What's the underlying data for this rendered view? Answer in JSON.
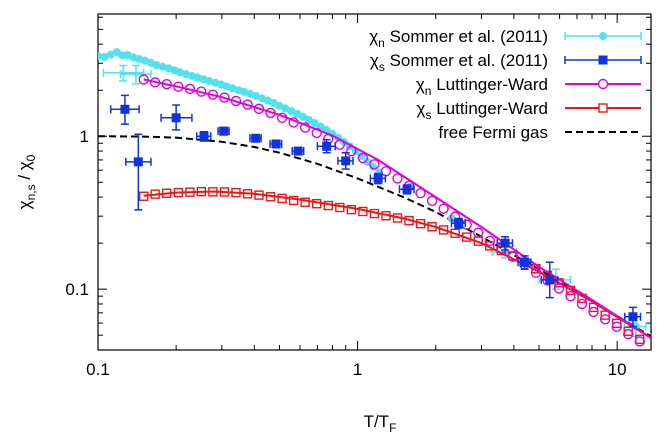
{
  "chart_data": {
    "type": "scatter",
    "title": "",
    "xlabel": "T/T",
    "xlabel_sub": "F",
    "ylabel_parts": [
      "χ",
      "n,s",
      " / χ",
      "0"
    ],
    "xscale": "log",
    "yscale": "log",
    "xlim": [
      0.1,
      13.5
    ],
    "ylim": [
      0.04,
      6.3
    ],
    "xticks": [
      {
        "value": 0.1,
        "label": "0.1"
      },
      {
        "value": 1,
        "label": "1"
      },
      {
        "value": 10,
        "label": "10"
      }
    ],
    "yticks": [
      {
        "value": 0.1,
        "label": "0.1"
      },
      {
        "value": 1,
        "label": "1"
      }
    ],
    "grid": false,
    "legend_position": "top-right",
    "colors": {
      "chi_n_exp": "#4fe3ee",
      "chi_s_exp": "#1133dd",
      "chi_n_lw": "#e000e0",
      "chi_s_lw": "#e81818",
      "free": "#000000"
    },
    "series": [
      {
        "key": "chi_n_exp",
        "name": "χ",
        "name_sub": "n",
        "name_rest": " Sommer et al. (2011)",
        "style": "errorbar-filled-circle",
        "points": [
          [
            0.1,
            3.35
          ],
          [
            0.106,
            3.3
          ],
          [
            0.112,
            3.42
          ],
          [
            0.118,
            3.55
          ],
          [
            0.124,
            3.38
          ],
          [
            0.13,
            3.4
          ],
          [
            0.137,
            3.28
          ],
          [
            0.144,
            3.2
          ],
          [
            0.152,
            3.12
          ],
          [
            0.16,
            3.02
          ],
          [
            0.168,
            2.92
          ],
          [
            0.177,
            2.85
          ],
          [
            0.187,
            2.78
          ],
          [
            0.197,
            2.7
          ],
          [
            0.207,
            2.62
          ],
          [
            0.218,
            2.55
          ],
          [
            0.23,
            2.48
          ],
          [
            0.242,
            2.42
          ],
          [
            0.255,
            2.36
          ],
          [
            0.268,
            2.3
          ],
          [
            0.283,
            2.24
          ],
          [
            0.298,
            2.18
          ],
          [
            0.313,
            2.12
          ],
          [
            0.33,
            2.06
          ],
          [
            0.348,
            2.0
          ],
          [
            0.366,
            1.95
          ],
          [
            0.386,
            1.89
          ],
          [
            0.406,
            1.83
          ],
          [
            0.428,
            1.77
          ],
          [
            0.451,
            1.71
          ],
          [
            0.475,
            1.65
          ],
          [
            0.5,
            1.58
          ],
          [
            0.527,
            1.52
          ],
          [
            0.555,
            1.46
          ],
          [
            0.585,
            1.4
          ],
          [
            0.616,
            1.34
          ],
          [
            0.649,
            1.28
          ],
          [
            0.683,
            1.22
          ],
          [
            0.72,
            1.16
          ],
          [
            0.758,
            1.1
          ],
          [
            0.798,
            1.04
          ],
          [
            0.841,
            0.98
          ],
          [
            0.886,
            0.92
          ],
          [
            0.933,
            0.86
          ],
          [
            0.983,
            0.8
          ],
          [
            1.035,
            0.74
          ],
          [
            1.09,
            0.68
          ],
          [
            1.148,
            0.63
          ],
          [
            1.21,
            0.58
          ],
          [
            1.6,
            0.47
          ],
          [
            2.3,
            0.29
          ],
          [
            3.7,
            0.175
          ],
          [
            5.8,
            0.115
          ],
          [
            11.8,
            0.057
          ]
        ],
        "errors": [
          {
            "x": 0.125,
            "y": 2.6,
            "xerr": [
              0.105,
              0.15
            ],
            "yerr": [
              2.3,
              2.9
            ]
          },
          {
            "x": 0.14,
            "y": 2.55,
            "xerr": [
              0.122,
              0.16
            ],
            "yerr": [
              2.2,
              2.9
            ]
          },
          {
            "x": 3.7,
            "y": 0.175,
            "xerr": [
              3.3,
              4.1
            ],
            "yerr": [
              0.16,
              0.19
            ]
          },
          {
            "x": 5.8,
            "y": 0.115,
            "xerr": [
              5.0,
              6.6
            ],
            "yerr": [
              0.1,
              0.135
            ]
          },
          {
            "x": 11.8,
            "y": 0.057,
            "xerr": [
              10.7,
              12.9
            ],
            "yerr": [
              0.049,
              0.066
            ]
          }
        ]
      },
      {
        "key": "chi_s_exp",
        "name": "χ",
        "name_sub": "s",
        "name_rest": " Sommer et al. (2011)",
        "style": "errorbar-filled-square",
        "points": [
          {
            "x": 0.127,
            "y": 1.5,
            "xerr": [
              0.112,
              0.144
            ],
            "yerr": [
              1.2,
              1.85
            ]
          },
          {
            "x": 0.143,
            "y": 0.68,
            "xerr": [
              0.128,
              0.16
            ],
            "yerr": [
              0.33,
              1.03
            ]
          },
          {
            "x": 0.2,
            "y": 1.32,
            "xerr": [
              0.175,
              0.23
            ],
            "yerr": [
              1.1,
              1.6
            ]
          },
          {
            "x": 0.256,
            "y": 1.0,
            "xerr": [
              0.24,
              0.272
            ],
            "yerr": [
              0.93,
              1.07
            ]
          },
          {
            "x": 0.305,
            "y": 1.08,
            "xerr": [
              0.29,
              0.32
            ],
            "yerr": [
              1.02,
              1.14
            ]
          },
          {
            "x": 0.405,
            "y": 0.97,
            "xerr": [
              0.385,
              0.425
            ],
            "yerr": [
              0.93,
              1.01
            ]
          },
          {
            "x": 0.485,
            "y": 0.89,
            "xerr": [
              0.46,
              0.51
            ],
            "yerr": [
              0.86,
              0.92
            ]
          },
          {
            "x": 0.59,
            "y": 0.8,
            "xerr": [
              0.56,
              0.62
            ],
            "yerr": [
              0.77,
              0.83
            ]
          },
          {
            "x": 0.76,
            "y": 0.86,
            "xerr": [
              0.7,
              0.82
            ],
            "yerr": [
              0.78,
              0.95
            ]
          },
          {
            "x": 0.9,
            "y": 0.69,
            "xerr": [
              0.84,
              0.96
            ],
            "yerr": [
              0.61,
              0.78
            ]
          },
          {
            "x": 1.2,
            "y": 0.53,
            "xerr": [
              1.12,
              1.28
            ],
            "yerr": [
              0.49,
              0.57
            ]
          },
          {
            "x": 1.55,
            "y": 0.45,
            "xerr": [
              1.45,
              1.65
            ],
            "yerr": [
              0.42,
              0.48
            ]
          },
          {
            "x": 2.45,
            "y": 0.27,
            "xerr": [
              2.3,
              2.6
            ],
            "yerr": [
              0.25,
              0.29
            ]
          },
          {
            "x": 3.7,
            "y": 0.2,
            "xerr": [
              3.45,
              3.95
            ],
            "yerr": [
              0.18,
              0.22
            ]
          },
          {
            "x": 4.4,
            "y": 0.15,
            "xerr": [
              4.15,
              4.65
            ],
            "yerr": [
              0.135,
              0.165
            ]
          },
          {
            "x": 5.5,
            "y": 0.115,
            "xerr": [
              5.1,
              5.9
            ],
            "yerr": [
              0.088,
              0.15
            ]
          },
          {
            "x": 11.5,
            "y": 0.066,
            "xerr": [
              10.7,
              12.3
            ],
            "yerr": [
              0.057,
              0.076
            ]
          }
        ]
      },
      {
        "key": "chi_n_lw",
        "name": "χ",
        "name_sub": "n",
        "name_rest": " Luttinger-Ward",
        "style": "line-open-circle",
        "line": [
          [
            0.15,
            2.35
          ],
          [
            0.2,
            2.12
          ],
          [
            0.3,
            1.8
          ],
          [
            0.5,
            1.38
          ],
          [
            0.8,
            1.01
          ],
          [
            1.2,
            0.7
          ],
          [
            2.0,
            0.4
          ],
          [
            3.0,
            0.255
          ],
          [
            5.0,
            0.14
          ],
          [
            8.0,
            0.085
          ],
          [
            13.5,
            0.048
          ]
        ],
        "markers": [
          [
            0.15,
            2.35
          ],
          [
            0.166,
            2.25
          ],
          [
            0.184,
            2.19
          ],
          [
            0.204,
            2.11
          ],
          [
            0.226,
            2.04
          ],
          [
            0.25,
            1.96
          ],
          [
            0.277,
            1.87
          ],
          [
            0.307,
            1.79
          ],
          [
            0.34,
            1.7
          ],
          [
            0.377,
            1.61
          ],
          [
            0.417,
            1.51
          ],
          [
            0.462,
            1.42
          ],
          [
            0.512,
            1.32
          ],
          [
            0.567,
            1.23
          ],
          [
            0.628,
            1.14
          ],
          [
            0.696,
            1.05
          ],
          [
            0.771,
            0.96
          ],
          [
            0.854,
            0.88
          ],
          [
            0.946,
            0.8
          ],
          [
            1.048,
            0.72
          ],
          [
            1.161,
            0.655
          ],
          [
            1.286,
            0.59
          ],
          [
            1.425,
            0.53
          ],
          [
            1.578,
            0.474
          ],
          [
            1.748,
            0.424
          ],
          [
            1.936,
            0.378
          ],
          [
            2.145,
            0.336
          ],
          [
            2.376,
            0.298
          ],
          [
            2.632,
            0.264
          ],
          [
            2.916,
            0.234
          ],
          [
            3.23,
            0.207
          ],
          [
            3.578,
            0.184
          ],
          [
            3.964,
            0.163
          ],
          [
            4.39,
            0.145
          ],
          [
            4.865,
            0.128
          ],
          [
            5.39,
            0.114
          ],
          [
            5.97,
            0.101
          ],
          [
            6.61,
            0.09
          ],
          [
            7.32,
            0.08
          ],
          [
            8.11,
            0.071
          ],
          [
            8.99,
            0.0635
          ],
          [
            9.96,
            0.0568
          ],
          [
            11.03,
            0.0508
          ],
          [
            12.22,
            0.0455
          ]
        ]
      },
      {
        "key": "chi_s_lw",
        "name": "χ",
        "name_sub": "s",
        "name_rest": " Luttinger-Ward",
        "style": "line-open-square",
        "line": [
          [
            0.15,
            0.408
          ],
          [
            0.2,
            0.428
          ],
          [
            0.28,
            0.435
          ],
          [
            0.4,
            0.42
          ],
          [
            0.6,
            0.385
          ],
          [
            1.0,
            0.335
          ],
          [
            1.5,
            0.29
          ],
          [
            2.0,
            0.255
          ],
          [
            3.0,
            0.2
          ],
          [
            5.0,
            0.13
          ],
          [
            8.0,
            0.083
          ],
          [
            13.5,
            0.048
          ]
        ],
        "markers": [
          [
            0.15,
            0.405
          ],
          [
            0.166,
            0.418
          ],
          [
            0.184,
            0.424
          ],
          [
            0.204,
            0.428
          ],
          [
            0.226,
            0.431
          ],
          [
            0.25,
            0.434
          ],
          [
            0.277,
            0.433
          ],
          [
            0.307,
            0.432
          ],
          [
            0.34,
            0.428
          ],
          [
            0.377,
            0.42
          ],
          [
            0.417,
            0.412
          ],
          [
            0.462,
            0.402
          ],
          [
            0.512,
            0.392
          ],
          [
            0.567,
            0.38
          ],
          [
            0.628,
            0.37
          ],
          [
            0.696,
            0.362
          ],
          [
            0.771,
            0.352
          ],
          [
            0.854,
            0.342
          ],
          [
            0.946,
            0.331
          ],
          [
            1.048,
            0.322
          ],
          [
            1.161,
            0.312
          ],
          [
            1.286,
            0.302
          ],
          [
            1.425,
            0.292
          ],
          [
            1.578,
            0.281
          ],
          [
            1.748,
            0.268
          ],
          [
            1.936,
            0.256
          ],
          [
            2.145,
            0.244
          ],
          [
            2.376,
            0.232
          ],
          [
            2.632,
            0.219
          ],
          [
            2.916,
            0.206
          ],
          [
            3.23,
            0.192
          ],
          [
            3.578,
            0.179
          ],
          [
            3.964,
            0.165
          ],
          [
            4.39,
            0.15
          ],
          [
            4.865,
            0.136
          ],
          [
            5.39,
            0.123
          ],
          [
            5.97,
            0.11
          ],
          [
            6.61,
            0.098
          ],
          [
            7.32,
            0.087
          ],
          [
            8.11,
            0.076
          ],
          [
            8.99,
            0.0676
          ],
          [
            9.96,
            0.0598
          ],
          [
            11.03,
            0.053
          ],
          [
            12.22,
            0.047
          ]
        ]
      },
      {
        "key": "free",
        "name": "free Fermi gas",
        "style": "dashed-line",
        "line": [
          [
            0.1,
            1.0
          ],
          [
            0.15,
            0.995
          ],
          [
            0.2,
            0.98
          ],
          [
            0.3,
            0.92
          ],
          [
            0.4,
            0.85
          ],
          [
            0.5,
            0.78
          ],
          [
            0.7,
            0.66
          ],
          [
            1.0,
            0.53
          ],
          [
            1.5,
            0.4
          ],
          [
            2.0,
            0.32
          ],
          [
            3.0,
            0.22
          ],
          [
            5.0,
            0.135
          ],
          [
            8.0,
            0.084
          ],
          [
            13.5,
            0.049
          ]
        ]
      }
    ]
  }
}
